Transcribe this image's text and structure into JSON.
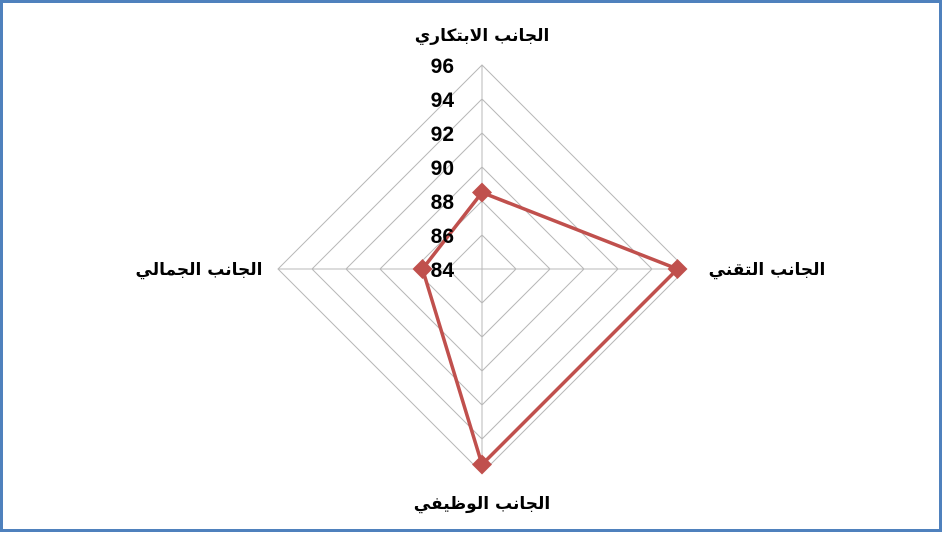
{
  "chart_data": {
    "type": "radar",
    "categories": [
      "الجانب الابتكاري",
      "الجانب التقني",
      "الجانب الوظيفي",
      "الجانب الجمالي"
    ],
    "series": [
      {
        "values": [
          88.5,
          95.5,
          95.5,
          87.5
        ],
        "color": "#c0504d"
      }
    ],
    "rlim": [
      84,
      96
    ],
    "ticks": [
      "84",
      "86",
      "88",
      "90",
      "92",
      "94",
      "96"
    ],
    "grid": true,
    "grid_color": "#b8b8b8",
    "frame_color": "#4f81bd",
    "marker": "diamond"
  }
}
